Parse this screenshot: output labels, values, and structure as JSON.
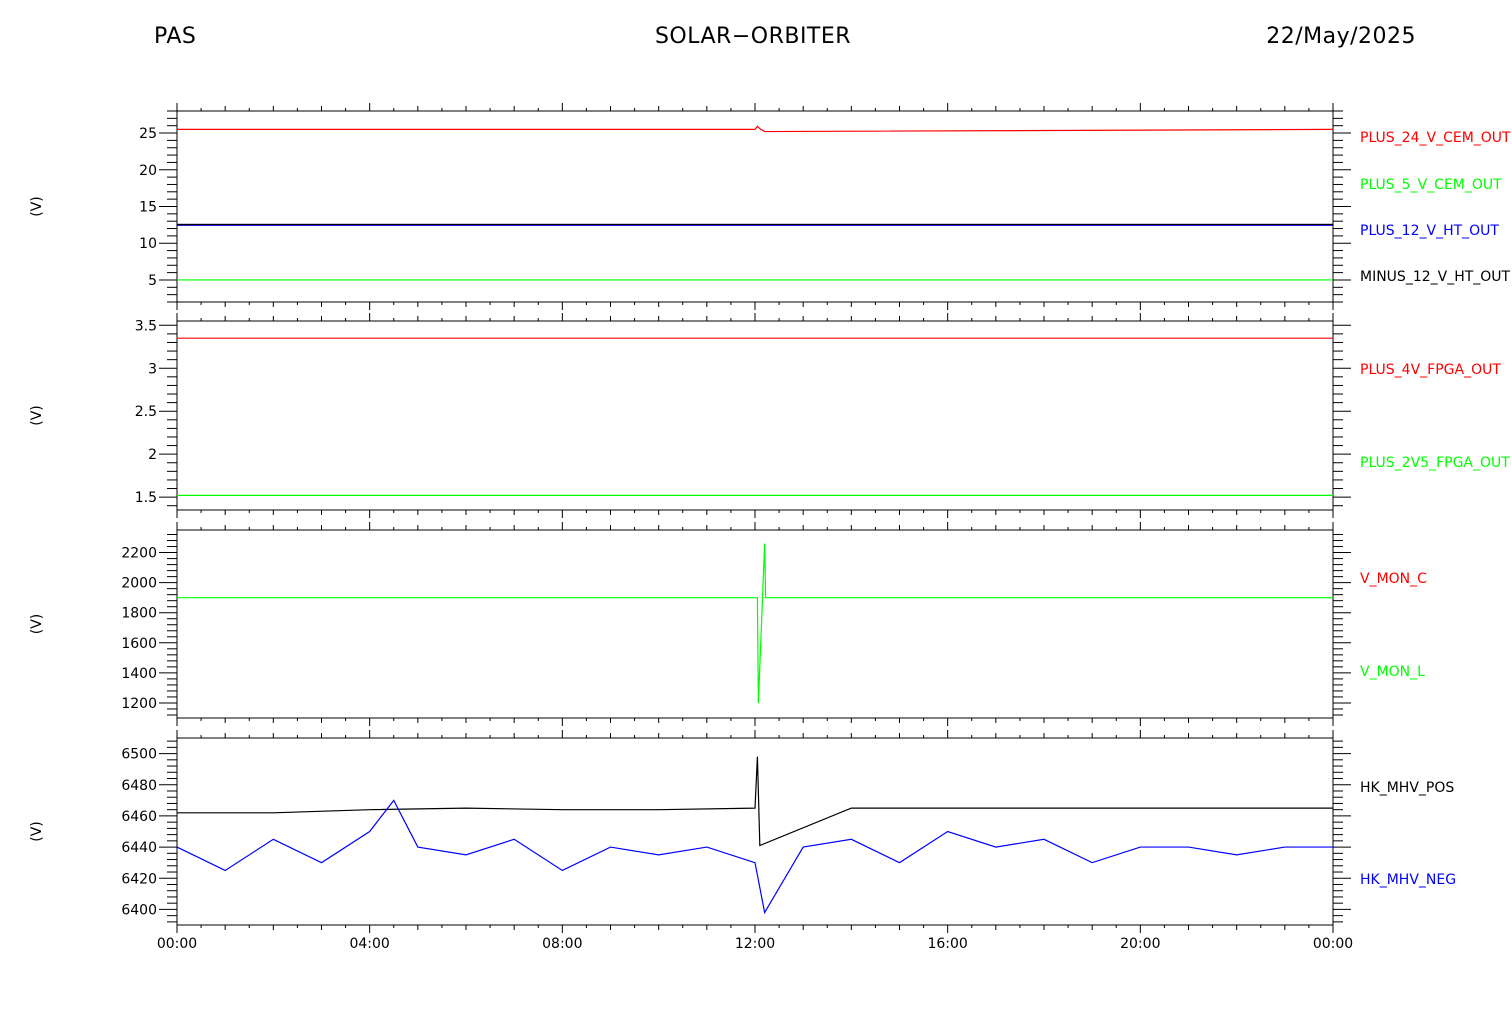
{
  "header": {
    "left": "PAS",
    "center": "SOLAR−ORBITER",
    "right": "22/May/2025"
  },
  "chart_data": [
    {
      "type": "line",
      "ylabel": "(V)",
      "ylim": [
        2,
        28
      ],
      "yticks": [
        5,
        10,
        15,
        20,
        25
      ],
      "series": [
        {
          "name": "PLUS_24_V_CEM_OUT",
          "color": "#ff0000",
          "x": [
            0,
            12.0,
            12.05,
            12.1,
            12.2,
            24
          ],
          "y": [
            25.5,
            25.5,
            25.9,
            25.6,
            25.2,
            25.5
          ]
        },
        {
          "name": "PLUS_5_V_CEM_OUT",
          "color": "#00ff00",
          "x": [
            0,
            24
          ],
          "y": [
            5.0,
            5.0
          ]
        },
        {
          "name": "PLUS_12_V_HT_OUT",
          "color": "#0000ff",
          "x": [
            0,
            24
          ],
          "y": [
            12.5,
            12.5
          ]
        },
        {
          "name": "MINUS_12_V_HT_OUT",
          "color": "#000000",
          "x": [
            0,
            24
          ],
          "y": [
            12.55,
            12.55
          ]
        }
      ]
    },
    {
      "type": "line",
      "ylabel": "(V)",
      "ylim": [
        1.35,
        3.55
      ],
      "yticks": [
        1.5,
        2.0,
        2.5,
        3.0,
        3.5
      ],
      "series": [
        {
          "name": "PLUS_4V_FPGA_OUT",
          "color": "#ff0000",
          "x": [
            0,
            24
          ],
          "y": [
            3.35,
            3.35
          ]
        },
        {
          "name": "PLUS_2V5_FPGA_OUT",
          "color": "#00ff00",
          "x": [
            0,
            24
          ],
          "y": [
            1.52,
            1.52
          ]
        }
      ]
    },
    {
      "type": "line",
      "ylabel": "(V)",
      "ylim": [
        1100,
        2350
      ],
      "yticks": [
        1200,
        1400,
        1600,
        1800,
        2000,
        2200
      ],
      "series": [
        {
          "name": "V_MON_C",
          "color": "#ff0000",
          "x": [],
          "y": []
        },
        {
          "name": "V_MON_L",
          "color": "#00ff00",
          "x": [
            0,
            12.05,
            12.07,
            12.15,
            12.2,
            12.22,
            24
          ],
          "y": [
            1900,
            1900,
            1200,
            1850,
            2260,
            1900,
            1900
          ]
        }
      ]
    },
    {
      "type": "line",
      "ylabel": "(V)",
      "ylim": [
        6390,
        6510
      ],
      "yticks": [
        6400,
        6420,
        6440,
        6460,
        6480,
        6500
      ],
      "series": [
        {
          "name": "HK_MHV_POS",
          "color": "#000000",
          "x": [
            0,
            2,
            4,
            6,
            8,
            10,
            12,
            12.05,
            12.1,
            14,
            16,
            18,
            20,
            22,
            24
          ],
          "y": [
            6462,
            6462,
            6464,
            6465,
            6464,
            6464,
            6465,
            6498,
            6441,
            6465,
            6465,
            6465,
            6465,
            6465,
            6465
          ]
        },
        {
          "name": "HK_MHV_NEG",
          "color": "#0000ff",
          "x": [
            0,
            1,
            2,
            3,
            4,
            4.5,
            5,
            6,
            7,
            8,
            9,
            10,
            11,
            12,
            12.2,
            13,
            14,
            15,
            16,
            17,
            18,
            19,
            20,
            21,
            22,
            23,
            24
          ],
          "y": [
            6440,
            6425,
            6445,
            6430,
            6450,
            6470,
            6440,
            6435,
            6445,
            6425,
            6440,
            6435,
            6440,
            6430,
            6398,
            6440,
            6445,
            6430,
            6450,
            6440,
            6445,
            6430,
            6440,
            6440,
            6435,
            6440,
            6440
          ]
        }
      ]
    }
  ],
  "xaxis": {
    "range": [
      "00:00",
      "24:00"
    ],
    "tick_labels": [
      "00:00",
      "04:00",
      "08:00",
      "12:00",
      "16:00",
      "20:00",
      "00:00"
    ]
  }
}
